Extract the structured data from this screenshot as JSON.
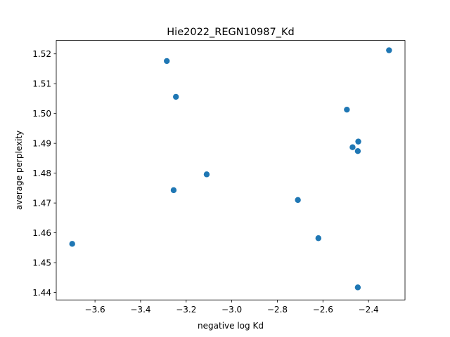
{
  "chart_data": {
    "type": "scatter",
    "title": "Hie2022_REGN10987_Kd",
    "xlabel": "negative log Kd",
    "ylabel": "average perplexity",
    "xlim": [
      -3.77,
      -2.24
    ],
    "ylim": [
      1.4375,
      1.5245
    ],
    "xticks": [
      -3.6,
      -3.4,
      -3.2,
      -3.0,
      -2.8,
      -2.6,
      -2.4
    ],
    "xtick_labels": [
      "−3.6",
      "−3.4",
      "−3.2",
      "−3.0",
      "−2.8",
      "−2.6",
      "−2.4"
    ],
    "yticks": [
      1.44,
      1.45,
      1.46,
      1.47,
      1.48,
      1.49,
      1.5,
      1.51,
      1.52
    ],
    "ytick_labels": [
      "1.44",
      "1.45",
      "1.46",
      "1.47",
      "1.48",
      "1.49",
      "1.50",
      "1.51",
      "1.52"
    ],
    "grid": false,
    "marker_color": "#1f77b4",
    "points": [
      {
        "x": -3.7,
        "y": 1.4563
      },
      {
        "x": -3.285,
        "y": 1.5176
      },
      {
        "x": -3.245,
        "y": 1.5056
      },
      {
        "x": -3.255,
        "y": 1.4743
      },
      {
        "x": -3.11,
        "y": 1.4796
      },
      {
        "x": -2.71,
        "y": 1.471
      },
      {
        "x": -2.62,
        "y": 1.4582
      },
      {
        "x": -2.495,
        "y": 1.5013
      },
      {
        "x": -2.47,
        "y": 1.4887
      },
      {
        "x": -2.445,
        "y": 1.4906
      },
      {
        "x": -2.447,
        "y": 1.4874
      },
      {
        "x": -2.447,
        "y": 1.4417
      },
      {
        "x": -2.31,
        "y": 1.5212
      }
    ]
  }
}
